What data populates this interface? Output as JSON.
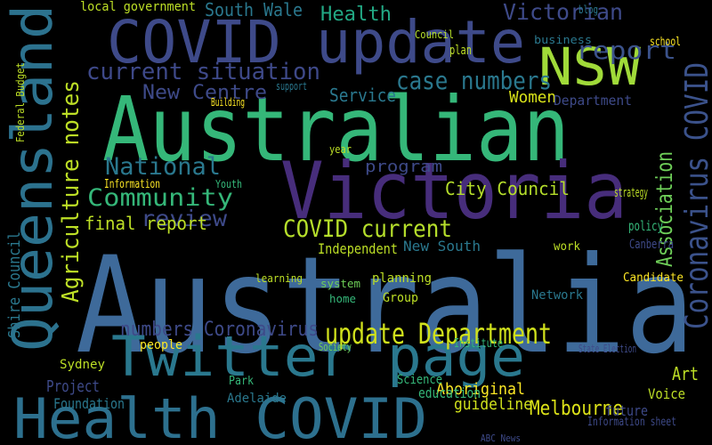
{
  "words": [
    "Australia",
    "Australian",
    "Victoria",
    "COVID update",
    "NSW",
    "Queensland",
    "Twitter page",
    "Health COVID",
    "Coronavirus COVID",
    "Agriculture notes",
    "update Department",
    "current situation",
    "case numbers",
    "report",
    "Victorian",
    "Health",
    "South Wale",
    "New Centre",
    "Community",
    "National",
    "review",
    "COVID current",
    "Association",
    "City Council",
    "program",
    "final report",
    "Service",
    "Women",
    "Department",
    "Melbourne",
    "Art",
    "Voice",
    "guideline",
    "Aboriginal",
    "education",
    "Science",
    "Project",
    "Foundation",
    "Sydney",
    "numbers Coronavirus",
    "people",
    "Adelaide",
    "Park",
    "future",
    "Information sheet",
    "Independent",
    "New South",
    "planning",
    "learning",
    "system",
    "home",
    "Group",
    "Canberra",
    "Candidate",
    "policy",
    "work",
    "Network",
    "strategy",
    "Shire Council",
    "Federal Budget",
    "local government",
    "Council",
    "plan",
    "business",
    "school",
    "blog",
    "support",
    "Building",
    "Information",
    "Youth",
    "year",
    "Institute",
    "Society",
    "State Election",
    "ABC News"
  ]
}
